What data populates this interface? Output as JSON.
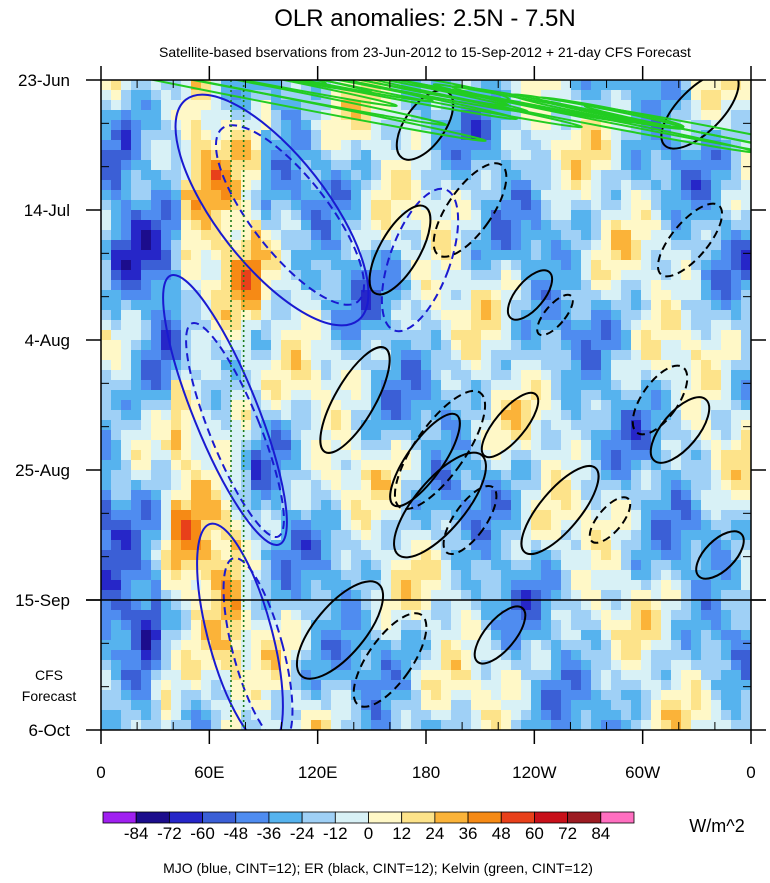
{
  "chart_data": {
    "type": "heatmap",
    "title": "OLR anomalies: 2.5N - 7.5N",
    "subtitle": "Satellite-based bservations from 23-Jun-2012 to 15-Sep-2012 + 21-day CFS Forecast",
    "x_tick_labels": [
      "0",
      "60E",
      "120E",
      "180",
      "120W",
      "60W",
      "0"
    ],
    "x_tick_lon": [
      0,
      60,
      120,
      180,
      240,
      300,
      360
    ],
    "y_tick_labels": [
      "23-Jun",
      "14-Jul",
      "4-Aug",
      "25-Aug",
      "15-Sep",
      "6-Oct"
    ],
    "y_tick_day": [
      0,
      21,
      42,
      63,
      84,
      105
    ],
    "y_range_days": [
      0,
      105
    ],
    "x_range_lon": [
      0,
      360
    ],
    "forecast_label_lines": [
      "CFS",
      "Forecast"
    ],
    "observation_end_day": 84,
    "reference_lines_lon": [
      72,
      79
    ],
    "colorbar": {
      "labels": [
        "-84",
        "-72",
        "-60",
        "-48",
        "-36",
        "-24",
        "-12",
        "0",
        "12",
        "24",
        "36",
        "48",
        "60",
        "72",
        "84"
      ],
      "levels": [
        -84,
        -72,
        -60,
        -48,
        -36,
        -24,
        -12,
        0,
        12,
        24,
        36,
        48,
        60,
        72,
        84
      ],
      "colors": [
        "#a020f0",
        "#1c0d8c",
        "#2626c8",
        "#3b5fd6",
        "#4f8cf0",
        "#56b3ee",
        "#9fd0f6",
        "#d8f1f6",
        "#fff8c7",
        "#fde38a",
        "#fbb339",
        "#f68a15",
        "#e8401a",
        "#c8101a",
        "#9c1b22",
        "#ff6fc0"
      ],
      "units": "W/m^2"
    },
    "footer": "MJO (blue, CINT=12); ER (black, CINT=12); Kelvin (green, CINT=12)",
    "contour_colors": {
      "mjo": "#1a1ad0",
      "er": "#000000",
      "kelvin": "#22cc22"
    },
    "kelvin_bands_start": [
      [
        230,
        98,
        10
      ],
      [
        320,
        55,
        2
      ],
      [
        355,
        45,
        8
      ],
      [
        420,
        30,
        14
      ],
      [
        470,
        20,
        20
      ],
      [
        245,
        190,
        24
      ],
      [
        330,
        190,
        25
      ],
      [
        345,
        240,
        30
      ],
      [
        245,
        285,
        34
      ],
      [
        190,
        320,
        38
      ],
      [
        115,
        395,
        46
      ],
      [
        405,
        355,
        43
      ],
      [
        405,
        430,
        52
      ],
      [
        185,
        450,
        55
      ],
      [
        175,
        510,
        63
      ],
      [
        150,
        535,
        66
      ],
      [
        300,
        582,
        73
      ]
    ],
    "mjo_ellipses": [
      [
        272,
        210,
        55,
        140,
        -38,
        false
      ],
      [
        290,
        215,
        38,
        110,
        -38,
        true
      ],
      [
        420,
        260,
        30,
        75,
        20,
        true
      ],
      [
        225,
        410,
        32,
        145,
        -22,
        false
      ],
      [
        235,
        430,
        25,
        115,
        -22,
        true
      ],
      [
        240,
        635,
        32,
        115,
        -15,
        false
      ],
      [
        258,
        650,
        25,
        95,
        -15,
        true
      ]
    ],
    "er_ellipses": [
      [
        700,
        110,
        22,
        50,
        45,
        false
      ],
      [
        425,
        125,
        20,
        40,
        35,
        false
      ],
      [
        470,
        210,
        22,
        55,
        35,
        true
      ],
      [
        690,
        240,
        18,
        45,
        40,
        true
      ],
      [
        400,
        250,
        20,
        50,
        30,
        false
      ],
      [
        530,
        295,
        14,
        30,
        40,
        false
      ],
      [
        555,
        315,
        10,
        25,
        40,
        true
      ],
      [
        355,
        400,
        20,
        60,
        30,
        false
      ],
      [
        440,
        450,
        25,
        70,
        35,
        true
      ],
      [
        425,
        460,
        18,
        55,
        35,
        false
      ],
      [
        510,
        425,
        15,
        40,
        40,
        false
      ],
      [
        660,
        400,
        18,
        40,
        35,
        true
      ],
      [
        680,
        430,
        18,
        40,
        40,
        false
      ],
      [
        440,
        505,
        25,
        65,
        40,
        false
      ],
      [
        470,
        520,
        16,
        40,
        35,
        true
      ],
      [
        560,
        510,
        20,
        55,
        40,
        false
      ],
      [
        720,
        555,
        15,
        30,
        45,
        false
      ],
      [
        610,
        520,
        12,
        28,
        40,
        true
      ],
      [
        340,
        630,
        25,
        60,
        40,
        false
      ],
      [
        390,
        660,
        22,
        55,
        35,
        true
      ],
      [
        500,
        635,
        15,
        35,
        40,
        false
      ]
    ]
  }
}
